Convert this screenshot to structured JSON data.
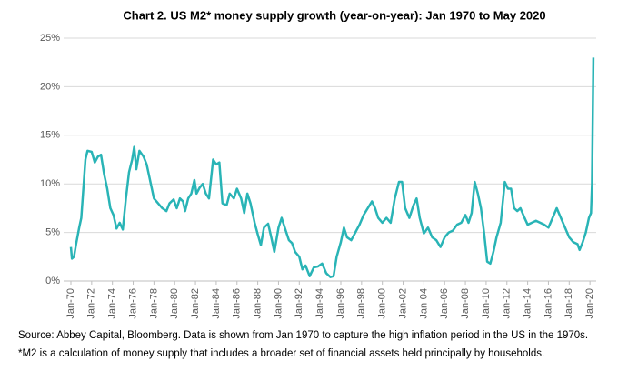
{
  "chart_data": {
    "type": "line",
    "title": "Chart 2. US M2* money supply growth (year-on-year): Jan 1970 to May 2020",
    "notes": [
      "Source: Abbey Capital, Bloomberg. Data is shown from Jan 1970 to capture the high inflation period in the US in the 1970s.",
      "*M2 is a calculation of money supply that includes a broader set of financial assets held principally by households."
    ],
    "x": [
      1970.0,
      1970.1,
      1970.3,
      1970.5,
      1970.8,
      1971.0,
      1971.2,
      1971.4,
      1971.6,
      1972.0,
      1972.3,
      1972.6,
      1972.9,
      1973.2,
      1973.5,
      1973.8,
      1974.1,
      1974.4,
      1974.7,
      1975.0,
      1975.3,
      1975.6,
      1975.9,
      1976.1,
      1976.3,
      1976.6,
      1977.0,
      1977.3,
      1977.6,
      1978.0,
      1978.4,
      1978.8,
      1979.2,
      1979.5,
      1979.9,
      1980.2,
      1980.5,
      1980.8,
      1981.0,
      1981.3,
      1981.6,
      1981.9,
      1982.1,
      1982.4,
      1982.7,
      1983.0,
      1983.3,
      1983.7,
      1984.0,
      1984.3,
      1984.6,
      1985.0,
      1985.3,
      1985.7,
      1986.0,
      1986.4,
      1986.7,
      1987.0,
      1987.3,
      1987.7,
      1988.0,
      1988.3,
      1988.6,
      1989.0,
      1989.3,
      1989.6,
      1990.0,
      1990.3,
      1990.6,
      1991.0,
      1991.3,
      1991.6,
      1992.0,
      1992.3,
      1992.6,
      1993.0,
      1993.4,
      1993.8,
      1994.2,
      1994.6,
      1995.0,
      1995.3,
      1995.6,
      1996.0,
      1996.3,
      1996.6,
      1997.0,
      1997.4,
      1997.8,
      1998.2,
      1998.6,
      1999.0,
      1999.3,
      1999.6,
      2000.0,
      2000.4,
      2000.8,
      2001.2,
      2001.6,
      2001.9,
      2002.2,
      2002.6,
      2003.0,
      2003.3,
      2003.6,
      2004.0,
      2004.4,
      2004.8,
      2005.2,
      2005.6,
      2006.0,
      2006.4,
      2006.8,
      2007.2,
      2007.6,
      2008.0,
      2008.3,
      2008.6,
      2008.9,
      2009.2,
      2009.5,
      2009.8,
      2010.1,
      2010.4,
      2010.7,
      2011.0,
      2011.4,
      2011.8,
      2012.1,
      2012.4,
      2012.7,
      2013.0,
      2013.3,
      2013.7,
      2014.0,
      2014.4,
      2014.8,
      2015.2,
      2015.6,
      2016.0,
      2016.4,
      2016.8,
      2017.2,
      2017.6,
      2018.0,
      2018.4,
      2018.8,
      2019.0,
      2019.3,
      2019.6,
      2019.9,
      2020.1,
      2020.2,
      2020.33
    ],
    "series": [
      {
        "color": "#29b4b6",
        "values": [
          3.5,
          2.3,
          2.5,
          3.8,
          5.5,
          6.5,
          9.5,
          12.5,
          13.4,
          13.3,
          12.2,
          12.8,
          13.0,
          11.0,
          9.5,
          7.5,
          6.8,
          5.4,
          6.0,
          5.3,
          8.5,
          11.2,
          12.5,
          13.8,
          11.5,
          13.4,
          12.8,
          12.0,
          10.5,
          8.5,
          8.0,
          7.5,
          7.2,
          8.0,
          8.4,
          7.5,
          8.5,
          8.2,
          7.2,
          8.5,
          9.0,
          10.4,
          9.0,
          9.6,
          10.0,
          9.0,
          8.5,
          12.5,
          12.0,
          12.2,
          8.0,
          7.8,
          9.0,
          8.5,
          9.5,
          8.5,
          7.0,
          9.0,
          8.0,
          6.0,
          4.8,
          3.7,
          5.5,
          5.9,
          4.5,
          3.0,
          5.5,
          6.5,
          5.5,
          4.2,
          3.9,
          3.0,
          2.5,
          1.2,
          1.6,
          0.5,
          1.4,
          1.5,
          1.8,
          0.8,
          0.4,
          0.5,
          2.5,
          4.0,
          5.5,
          4.5,
          4.2,
          5.0,
          5.8,
          6.8,
          7.5,
          8.2,
          7.5,
          6.5,
          6.0,
          6.5,
          6.0,
          8.5,
          10.2,
          10.2,
          7.5,
          6.5,
          7.8,
          8.5,
          6.5,
          4.9,
          5.5,
          4.5,
          4.2,
          3.5,
          4.5,
          5.0,
          5.2,
          5.8,
          6.0,
          6.8,
          6.0,
          7.0,
          10.2,
          9.0,
          7.5,
          5.0,
          2.0,
          1.8,
          3.0,
          4.5,
          6.0,
          10.2,
          9.5,
          9.5,
          7.5,
          7.2,
          7.5,
          6.5,
          5.8,
          6.0,
          6.2,
          6.0,
          5.8,
          5.5,
          6.5,
          7.5,
          6.5,
          5.5,
          4.5,
          4.0,
          3.8,
          3.2,
          4.0,
          5.0,
          6.5,
          7.0,
          10.0,
          23.0
        ]
      }
    ],
    "xlim": [
      1969.3,
      2020.6
    ],
    "xticks": [
      {
        "value": 1970,
        "label": "Jan-70"
      },
      {
        "value": 1972,
        "label": "Jan-72"
      },
      {
        "value": 1974,
        "label": "Jan-74"
      },
      {
        "value": 1976,
        "label": "Jan-76"
      },
      {
        "value": 1978,
        "label": "Jan-78"
      },
      {
        "value": 1980,
        "label": "Jan-80"
      },
      {
        "value": 1982,
        "label": "Jan-82"
      },
      {
        "value": 1984,
        "label": "Jan-84"
      },
      {
        "value": 1986,
        "label": "Jan-86"
      },
      {
        "value": 1988,
        "label": "Jan-88"
      },
      {
        "value": 1990,
        "label": "Jan-90"
      },
      {
        "value": 1992,
        "label": "Jan-92"
      },
      {
        "value": 1994,
        "label": "Jan-94"
      },
      {
        "value": 1996,
        "label": "Jan-96"
      },
      {
        "value": 1998,
        "label": "Jan-98"
      },
      {
        "value": 2000,
        "label": "Jan-00"
      },
      {
        "value": 2002,
        "label": "Jan-02"
      },
      {
        "value": 2004,
        "label": "Jan-04"
      },
      {
        "value": 2006,
        "label": "Jan-06"
      },
      {
        "value": 2008,
        "label": "Jan-08"
      },
      {
        "value": 2010,
        "label": "Jan-10"
      },
      {
        "value": 2012,
        "label": "Jan-12"
      },
      {
        "value": 2014,
        "label": "Jan-14"
      },
      {
        "value": 2016,
        "label": "Jan-16"
      },
      {
        "value": 2018,
        "label": "Jan-18"
      },
      {
        "value": 2020,
        "label": "Jan-20"
      }
    ],
    "ylim": [
      0,
      25
    ],
    "yticks": [
      {
        "value": 0,
        "label": "0%"
      },
      {
        "value": 5,
        "label": "5%"
      },
      {
        "value": 10,
        "label": "10%"
      },
      {
        "value": 15,
        "label": "15%"
      },
      {
        "value": 20,
        "label": "20%"
      },
      {
        "value": 25,
        "label": "25%"
      }
    ],
    "grid": true
  }
}
